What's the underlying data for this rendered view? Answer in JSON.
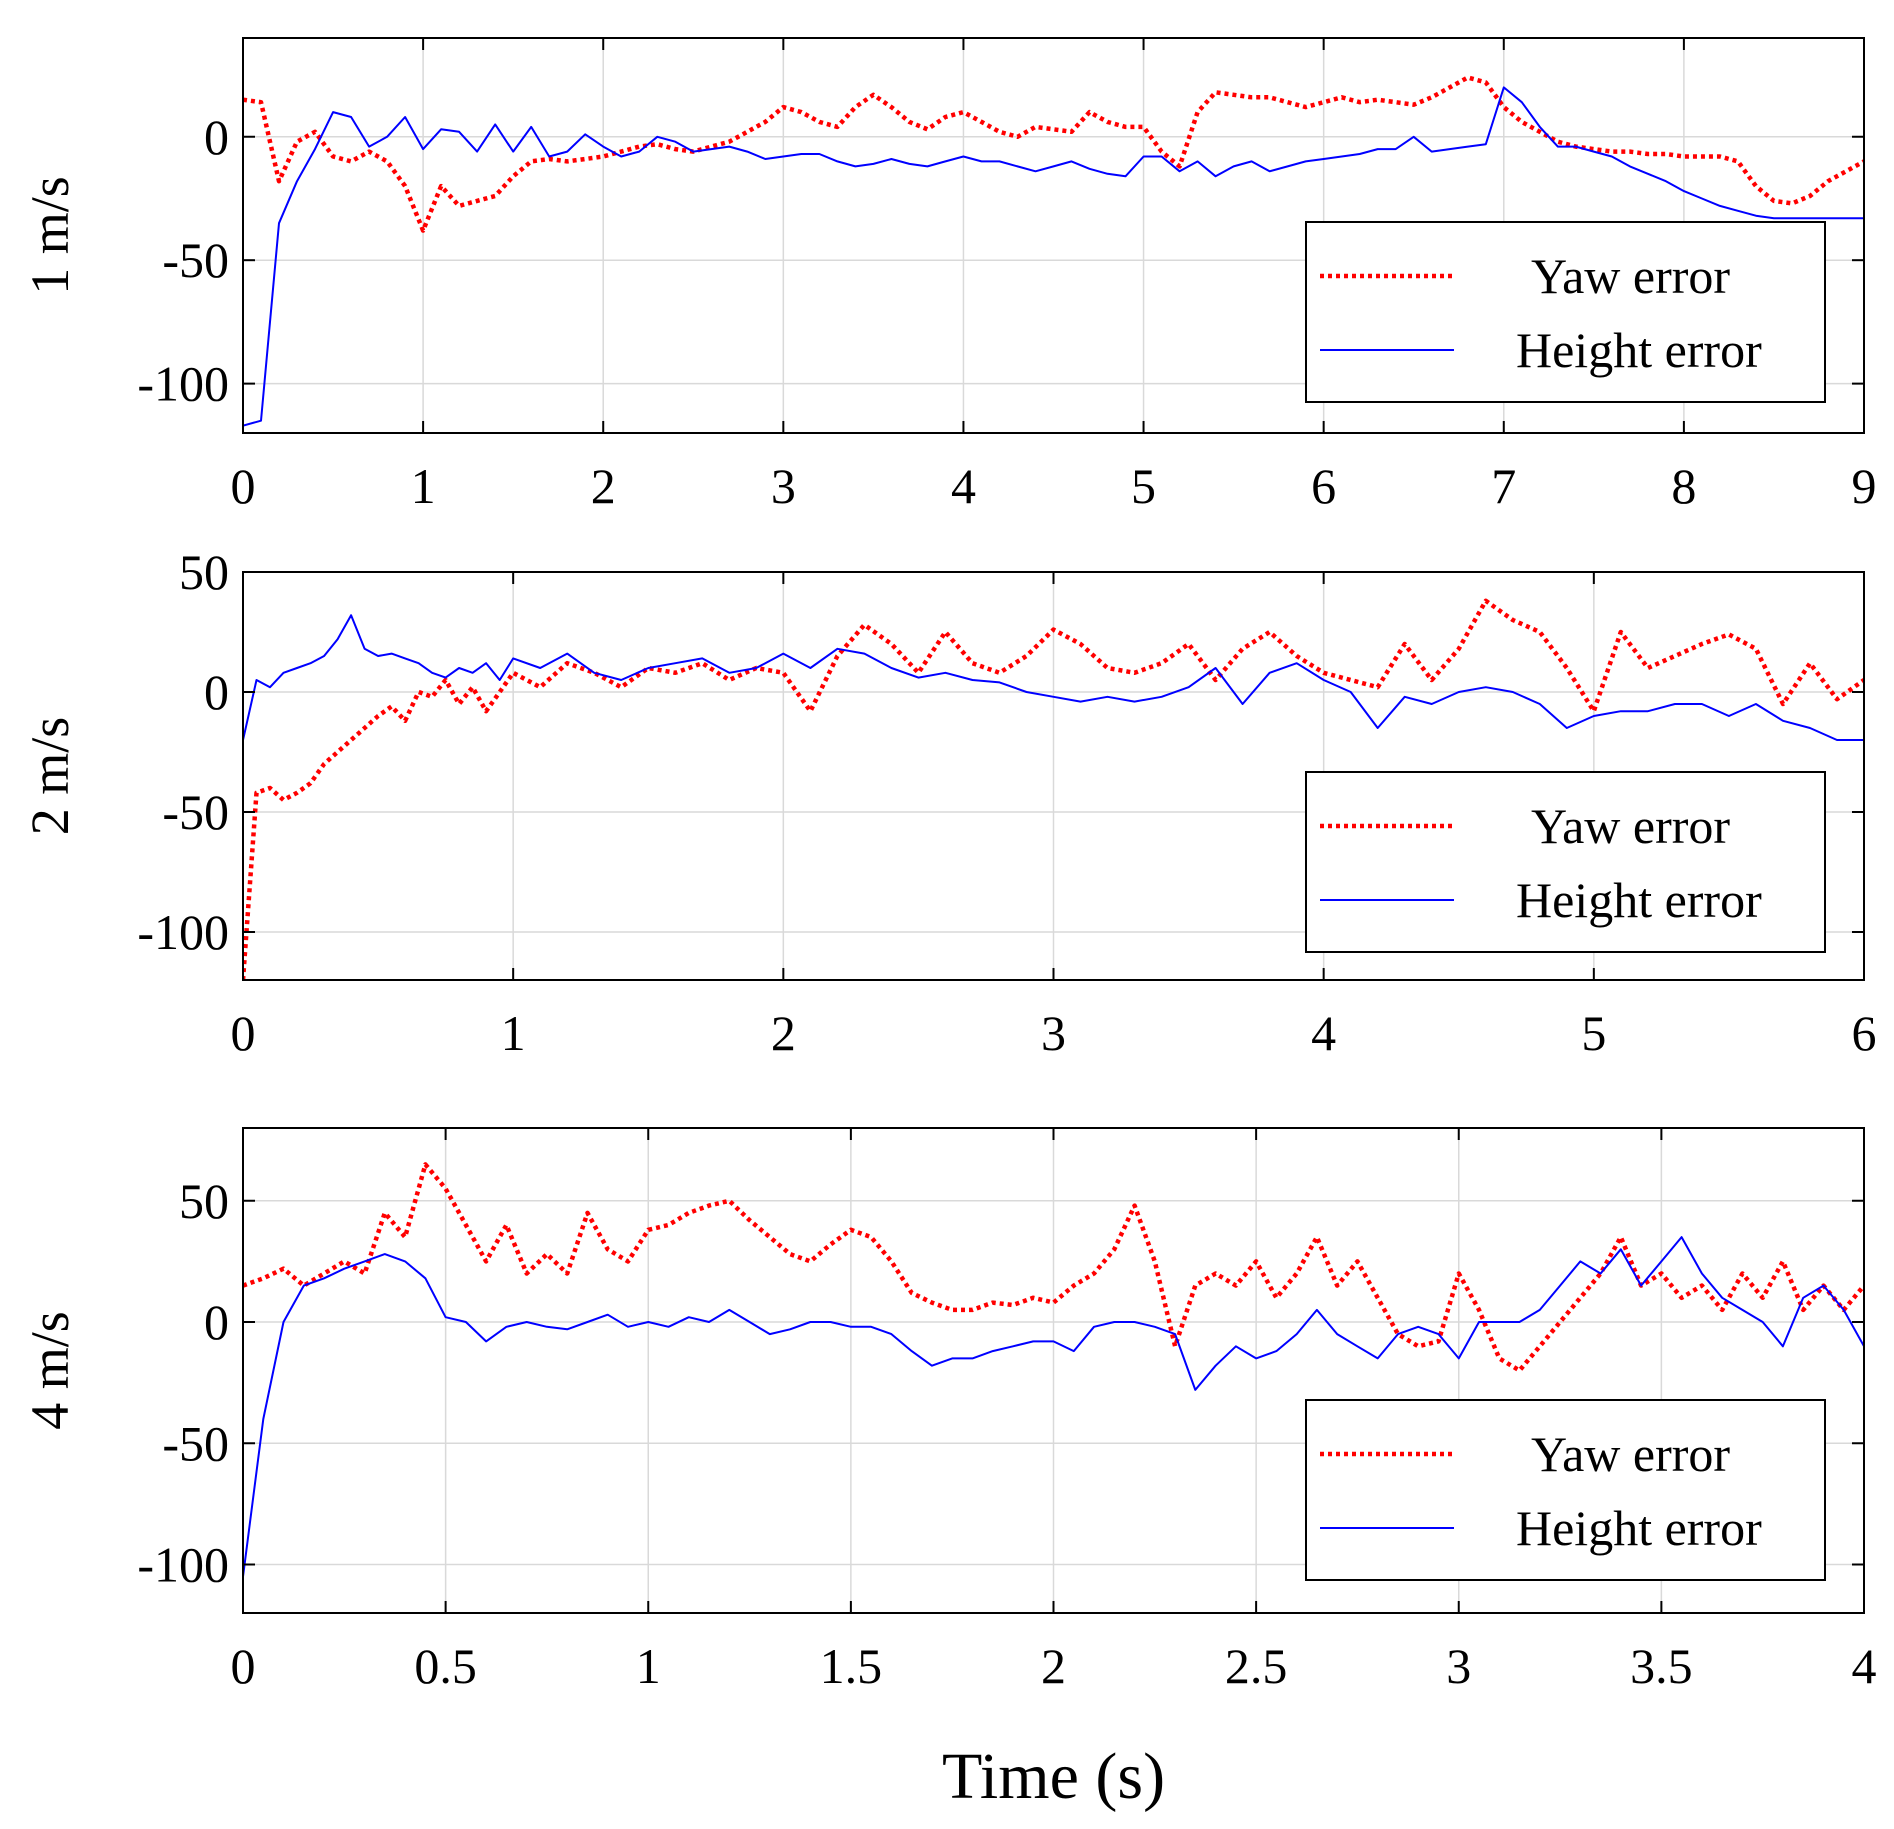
{
  "chart_data": [
    {
      "type": "line",
      "ylabel": "1 m/s",
      "xlim": [
        0,
        9
      ],
      "ylim": [
        -120,
        40
      ],
      "xticks": [
        "0",
        "1",
        "2",
        "3",
        "4",
        "5",
        "6",
        "7",
        "8",
        "9"
      ],
      "yticks": [
        "0",
        "-50",
        "-100"
      ],
      "ytick_values": [
        0,
        -50,
        -100
      ],
      "grid": true,
      "legend_position": "bottom-right",
      "series": [
        {
          "name": "Yaw error",
          "color": "#ff0000",
          "style": "dotted",
          "x": [
            0,
            0.1,
            0.2,
            0.3,
            0.4,
            0.5,
            0.6,
            0.7,
            0.8,
            0.9,
            1.0,
            1.1,
            1.2,
            1.3,
            1.4,
            1.5,
            1.6,
            1.7,
            1.8,
            1.9,
            2.0,
            2.1,
            2.2,
            2.3,
            2.4,
            2.5,
            2.6,
            2.7,
            2.8,
            2.9,
            3.0,
            3.1,
            3.2,
            3.3,
            3.4,
            3.5,
            3.6,
            3.7,
            3.8,
            3.9,
            4.0,
            4.1,
            4.2,
            4.3,
            4.4,
            4.5,
            4.6,
            4.7,
            4.8,
            4.9,
            5.0,
            5.1,
            5.2,
            5.3,
            5.4,
            5.5,
            5.6,
            5.7,
            5.8,
            5.9,
            6.0,
            6.1,
            6.2,
            6.3,
            6.4,
            6.5,
            6.6,
            6.7,
            6.8,
            6.9,
            7.0,
            7.1,
            7.2,
            7.3,
            7.4,
            7.5,
            7.6,
            7.7,
            7.8,
            7.9,
            8.0,
            8.1,
            8.2,
            8.3,
            8.4,
            8.5,
            8.6,
            8.7,
            8.8,
            8.9,
            9.0
          ],
          "y": [
            15,
            14,
            -18,
            -2,
            2,
            -8,
            -10,
            -6,
            -10,
            -20,
            -38,
            -20,
            -28,
            -26,
            -24,
            -16,
            -10,
            -9,
            -10,
            -9,
            -8,
            -6,
            -4,
            -3,
            -5,
            -6,
            -4,
            -2,
            2,
            6,
            12,
            10,
            6,
            4,
            12,
            17,
            12,
            6,
            3,
            8,
            10,
            6,
            2,
            0,
            4,
            3,
            2,
            10,
            6,
            4,
            4,
            -6,
            -12,
            10,
            18,
            17,
            16,
            16,
            14,
            12,
            14,
            16,
            14,
            15,
            14,
            13,
            16,
            20,
            24,
            22,
            12,
            6,
            2,
            -2,
            -4,
            -5,
            -6,
            -6,
            -7,
            -7,
            -8,
            -8,
            -8,
            -10,
            -20,
            -26,
            -27,
            -24,
            -18,
            -14,
            -10
          ]
        },
        {
          "name": "Height error",
          "color": "#0000ff",
          "style": "solid",
          "x": [
            0,
            0.1,
            0.2,
            0.3,
            0.4,
            0.5,
            0.6,
            0.7,
            0.8,
            0.9,
            1.0,
            1.1,
            1.2,
            1.3,
            1.4,
            1.5,
            1.6,
            1.7,
            1.8,
            1.9,
            2.0,
            2.1,
            2.2,
            2.3,
            2.4,
            2.5,
            2.6,
            2.7,
            2.8,
            2.9,
            3.0,
            3.1,
            3.2,
            3.3,
            3.4,
            3.5,
            3.6,
            3.7,
            3.8,
            3.9,
            4.0,
            4.1,
            4.2,
            4.3,
            4.4,
            4.5,
            4.6,
            4.7,
            4.8,
            4.9,
            5.0,
            5.1,
            5.2,
            5.3,
            5.4,
            5.5,
            5.6,
            5.7,
            5.8,
            5.9,
            6.0,
            6.1,
            6.2,
            6.3,
            6.4,
            6.5,
            6.6,
            6.7,
            6.8,
            6.9,
            7.0,
            7.1,
            7.2,
            7.3,
            7.4,
            7.5,
            7.6,
            7.7,
            7.8,
            7.9,
            8.0,
            8.1,
            8.2,
            8.3,
            8.4,
            8.5,
            8.6,
            8.7,
            8.8,
            8.9,
            9.0
          ],
          "y": [
            -117,
            -115,
            -35,
            -18,
            -5,
            10,
            8,
            -4,
            0,
            8,
            -5,
            3,
            2,
            -6,
            5,
            -6,
            4,
            -8,
            -6,
            1,
            -4,
            -8,
            -6,
            0,
            -2,
            -6,
            -5,
            -4,
            -6,
            -9,
            -8,
            -7,
            -7,
            -10,
            -12,
            -11,
            -9,
            -11,
            -12,
            -10,
            -8,
            -10,
            -10,
            -12,
            -14,
            -12,
            -10,
            -13,
            -15,
            -16,
            -8,
            -8,
            -14,
            -10,
            -16,
            -12,
            -10,
            -14,
            -12,
            -10,
            -9,
            -8,
            -7,
            -5,
            -5,
            0,
            -6,
            -5,
            -4,
            -3,
            20,
            14,
            4,
            -4,
            -4,
            -6,
            -8,
            -12,
            -15,
            -18,
            -22,
            -25,
            -28,
            -30,
            -32,
            -33,
            -33,
            -33,
            -33,
            -33,
            -33
          ]
        }
      ]
    },
    {
      "type": "line",
      "ylabel": "2 m/s",
      "xlim": [
        0,
        6
      ],
      "ylim": [
        -120,
        50
      ],
      "xticks": [
        "0",
        "1",
        "2",
        "3",
        "4",
        "5",
        "6"
      ],
      "yticks": [
        "50",
        "0",
        "-50",
        "-100"
      ],
      "ytick_values": [
        50,
        0,
        -50,
        -100
      ],
      "grid": true,
      "legend_position": "bottom-right",
      "series": [
        {
          "name": "Yaw error",
          "color": "#ff0000",
          "style": "dotted",
          "x": [
            0,
            0.05,
            0.1,
            0.15,
            0.2,
            0.25,
            0.3,
            0.35,
            0.4,
            0.45,
            0.5,
            0.55,
            0.6,
            0.65,
            0.7,
            0.75,
            0.8,
            0.85,
            0.9,
            0.95,
            1.0,
            1.1,
            1.2,
            1.3,
            1.4,
            1.5,
            1.6,
            1.7,
            1.8,
            1.9,
            2.0,
            2.1,
            2.2,
            2.3,
            2.4,
            2.5,
            2.6,
            2.7,
            2.8,
            2.9,
            3.0,
            3.1,
            3.2,
            3.3,
            3.4,
            3.5,
            3.6,
            3.7,
            3.8,
            3.9,
            4.0,
            4.1,
            4.2,
            4.3,
            4.4,
            4.5,
            4.6,
            4.7,
            4.8,
            4.9,
            5.0,
            5.1,
            5.2,
            5.3,
            5.4,
            5.5,
            5.6,
            5.7,
            5.8,
            5.9,
            6.0
          ],
          "y": [
            -120,
            -42,
            -40,
            -45,
            -42,
            -38,
            -30,
            -25,
            -20,
            -15,
            -10,
            -6,
            -12,
            0,
            -2,
            5,
            -5,
            2,
            -8,
            0,
            8,
            2,
            12,
            8,
            2,
            10,
            8,
            12,
            5,
            10,
            8,
            -8,
            15,
            28,
            20,
            8,
            25,
            12,
            8,
            15,
            26,
            20,
            10,
            8,
            12,
            20,
            5,
            18,
            25,
            15,
            8,
            5,
            2,
            20,
            5,
            18,
            38,
            30,
            25,
            10,
            -8,
            25,
            10,
            15,
            20,
            24,
            18,
            -5,
            12,
            -3,
            5
          ]
        },
        {
          "name": "Height error",
          "color": "#0000ff",
          "style": "solid",
          "x": [
            0,
            0.05,
            0.1,
            0.15,
            0.2,
            0.25,
            0.3,
            0.35,
            0.4,
            0.45,
            0.5,
            0.55,
            0.6,
            0.65,
            0.7,
            0.75,
            0.8,
            0.85,
            0.9,
            0.95,
            1.0,
            1.1,
            1.2,
            1.3,
            1.4,
            1.5,
            1.6,
            1.7,
            1.8,
            1.9,
            2.0,
            2.1,
            2.2,
            2.3,
            2.4,
            2.5,
            2.6,
            2.7,
            2.8,
            2.9,
            3.0,
            3.1,
            3.2,
            3.3,
            3.4,
            3.5,
            3.6,
            3.7,
            3.8,
            3.9,
            4.0,
            4.1,
            4.2,
            4.3,
            4.4,
            4.5,
            4.6,
            4.7,
            4.8,
            4.9,
            5.0,
            5.1,
            5.2,
            5.3,
            5.4,
            5.5,
            5.6,
            5.7,
            5.8,
            5.9,
            6.0
          ],
          "y": [
            -20,
            5,
            2,
            8,
            10,
            12,
            15,
            22,
            32,
            18,
            15,
            16,
            14,
            12,
            8,
            6,
            10,
            8,
            12,
            5,
            14,
            10,
            16,
            8,
            5,
            10,
            12,
            14,
            8,
            10,
            16,
            10,
            18,
            16,
            10,
            6,
            8,
            5,
            4,
            0,
            -2,
            -4,
            -2,
            -4,
            -2,
            2,
            10,
            -5,
            8,
            12,
            5,
            0,
            -15,
            -2,
            -5,
            0,
            2,
            0,
            -5,
            -15,
            -10,
            -8,
            -8,
            -5,
            -5,
            -10,
            -5,
            -12,
            -15,
            -20,
            -20
          ]
        }
      ]
    },
    {
      "type": "line",
      "ylabel": "4 m/s",
      "xlabel": "Time (s)",
      "xlim": [
        0,
        4
      ],
      "ylim": [
        -120,
        80
      ],
      "xticks": [
        "0",
        "0.5",
        "1",
        "1.5",
        "2",
        "2.5",
        "3",
        "3.5",
        "4"
      ],
      "yticks": [
        "50",
        "0",
        "-50",
        "-100"
      ],
      "ytick_values": [
        50,
        0,
        -50,
        -100
      ],
      "grid": true,
      "legend_position": "bottom-right",
      "series": [
        {
          "name": "Yaw error",
          "color": "#ff0000",
          "style": "dotted",
          "x": [
            0,
            0.05,
            0.1,
            0.15,
            0.2,
            0.25,
            0.3,
            0.35,
            0.4,
            0.45,
            0.5,
            0.55,
            0.6,
            0.65,
            0.7,
            0.75,
            0.8,
            0.85,
            0.9,
            0.95,
            1.0,
            1.05,
            1.1,
            1.15,
            1.2,
            1.25,
            1.3,
            1.35,
            1.4,
            1.45,
            1.5,
            1.55,
            1.6,
            1.65,
            1.7,
            1.75,
            1.8,
            1.85,
            1.9,
            1.95,
            2.0,
            2.05,
            2.1,
            2.15,
            2.2,
            2.25,
            2.3,
            2.35,
            2.4,
            2.45,
            2.5,
            2.55,
            2.6,
            2.65,
            2.7,
            2.75,
            2.8,
            2.85,
            2.9,
            2.95,
            3.0,
            3.05,
            3.1,
            3.15,
            3.2,
            3.25,
            3.3,
            3.35,
            3.4,
            3.45,
            3.5,
            3.55,
            3.6,
            3.65,
            3.7,
            3.75,
            3.8,
            3.85,
            3.9,
            3.95,
            4.0
          ],
          "y": [
            15,
            18,
            22,
            15,
            20,
            25,
            20,
            45,
            35,
            65,
            55,
            40,
            25,
            40,
            20,
            28,
            20,
            45,
            30,
            25,
            38,
            40,
            45,
            48,
            50,
            42,
            35,
            28,
            25,
            32,
            38,
            35,
            25,
            12,
            8,
            5,
            5,
            8,
            7,
            10,
            8,
            15,
            20,
            30,
            48,
            25,
            -10,
            15,
            20,
            15,
            25,
            10,
            20,
            35,
            15,
            25,
            10,
            -5,
            -10,
            -8,
            20,
            5,
            -15,
            -20,
            -10,
            0,
            10,
            20,
            35,
            15,
            20,
            10,
            15,
            5,
            20,
            10,
            25,
            5,
            15,
            5,
            15
          ]
        },
        {
          "name": "Height error",
          "color": "#0000ff",
          "style": "solid",
          "x": [
            0,
            0.05,
            0.1,
            0.15,
            0.2,
            0.25,
            0.3,
            0.35,
            0.4,
            0.45,
            0.5,
            0.55,
            0.6,
            0.65,
            0.7,
            0.75,
            0.8,
            0.85,
            0.9,
            0.95,
            1.0,
            1.05,
            1.1,
            1.15,
            1.2,
            1.25,
            1.3,
            1.35,
            1.4,
            1.45,
            1.5,
            1.55,
            1.6,
            1.65,
            1.7,
            1.75,
            1.8,
            1.85,
            1.9,
            1.95,
            2.0,
            2.05,
            2.1,
            2.15,
            2.2,
            2.25,
            2.3,
            2.35,
            2.4,
            2.45,
            2.5,
            2.55,
            2.6,
            2.65,
            2.7,
            2.75,
            2.8,
            2.85,
            2.9,
            2.95,
            3.0,
            3.05,
            3.1,
            3.15,
            3.2,
            3.25,
            3.3,
            3.35,
            3.4,
            3.45,
            3.5,
            3.55,
            3.6,
            3.65,
            3.7,
            3.75,
            3.8,
            3.85,
            3.9,
            3.95,
            4.0
          ],
          "y": [
            -105,
            -40,
            0,
            15,
            18,
            22,
            25,
            28,
            25,
            18,
            2,
            0,
            -8,
            -2,
            0,
            -2,
            -3,
            0,
            3,
            -2,
            0,
            -2,
            2,
            0,
            5,
            0,
            -5,
            -3,
            0,
            0,
            -2,
            -2,
            -5,
            -12,
            -18,
            -15,
            -15,
            -12,
            -10,
            -8,
            -8,
            -12,
            -2,
            0,
            0,
            -2,
            -5,
            -28,
            -18,
            -10,
            -15,
            -12,
            -5,
            5,
            -5,
            -10,
            -15,
            -5,
            -2,
            -5,
            -15,
            0,
            0,
            0,
            5,
            15,
            25,
            20,
            30,
            15,
            25,
            35,
            20,
            10,
            5,
            0,
            -10,
            10,
            15,
            5,
            -10
          ]
        }
      ]
    }
  ]
}
